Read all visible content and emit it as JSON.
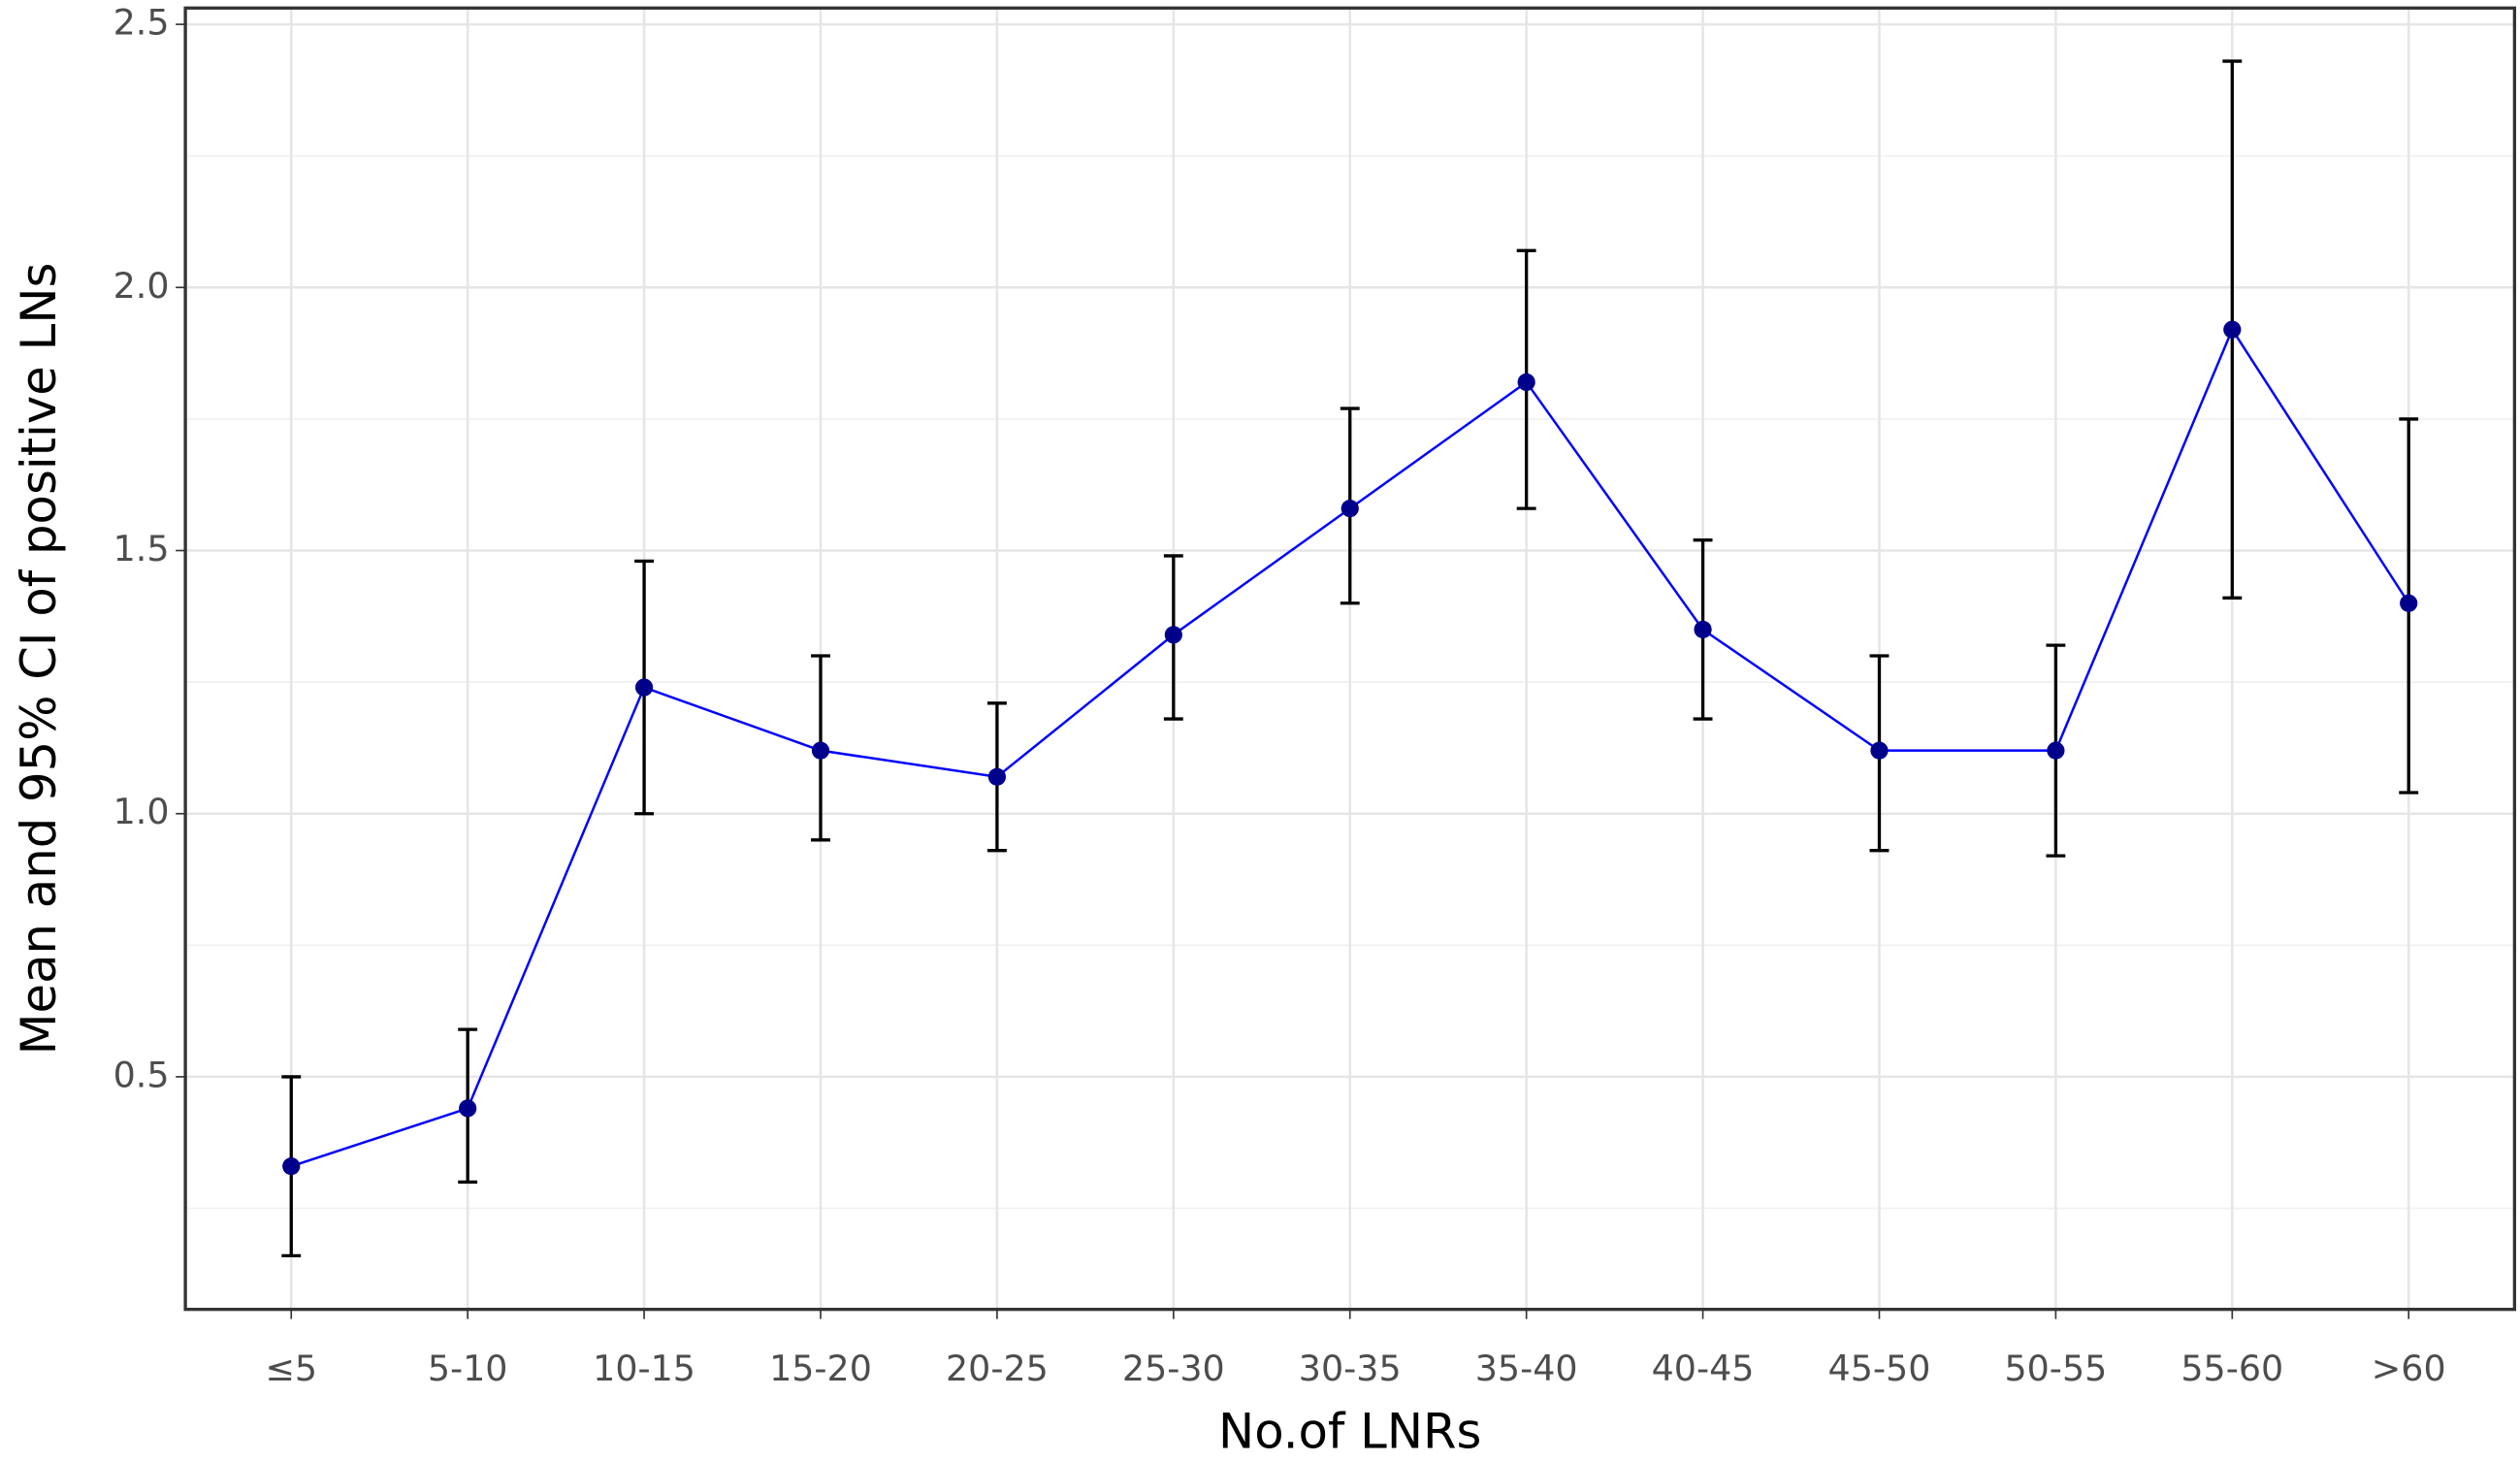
{
  "chart_data": {
    "type": "line",
    "x_label": "No.of LNRs",
    "y_label": "Mean and 95% CI of positive LNs",
    "categories": [
      "≤5",
      "5-10",
      "10-15",
      "15-20",
      "20-25",
      "25-30",
      "30-35",
      "35-40",
      "40-45",
      "45-50",
      "50-55",
      "55-60",
      ">60"
    ],
    "series": [
      {
        "color": "#0000ff",
        "marker_color": "#00008b",
        "errorbar_color": "#000000",
        "values": [
          0.33,
          0.44,
          1.24,
          1.12,
          1.07,
          1.34,
          1.58,
          1.82,
          1.35,
          1.12,
          1.12,
          1.92,
          1.4
        ],
        "lower": [
          0.16,
          0.3,
          1.0,
          0.95,
          0.93,
          1.18,
          1.4,
          1.58,
          1.18,
          0.93,
          0.92,
          1.41,
          1.04
        ],
        "upper": [
          0.5,
          0.59,
          1.48,
          1.3,
          1.21,
          1.49,
          1.77,
          2.07,
          1.52,
          1.3,
          1.32,
          2.43,
          1.75
        ]
      }
    ],
    "ylim": [
      0.058,
      2.531
    ],
    "yticks": [
      {
        "value": 0.5,
        "label": "0.5"
      },
      {
        "value": 1,
        "label": "1.0"
      },
      {
        "value": 1.5,
        "label": "1.5"
      },
      {
        "value": 2,
        "label": "2.0"
      },
      {
        "value": 2.5,
        "label": "2.5"
      }
    ],
    "minor_yticks": [
      0.25,
      0.75,
      1.25,
      1.75,
      2.25
    ],
    "grid": true
  }
}
